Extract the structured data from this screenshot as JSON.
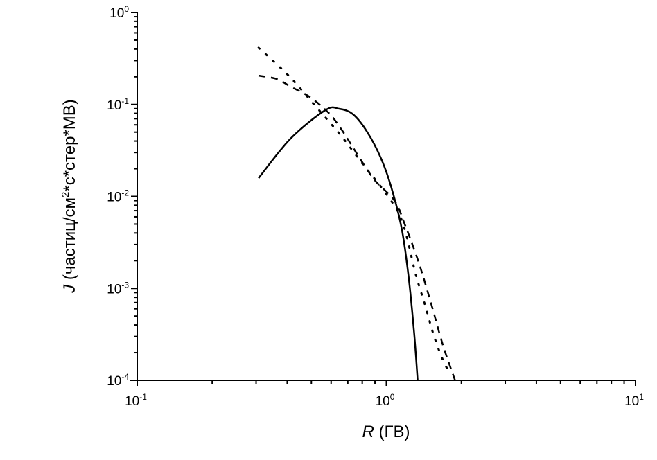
{
  "chart_data": {
    "type": "line",
    "title": "",
    "xlabel": {
      "symbol": "R",
      "text": " (ГВ)"
    },
    "ylabel": {
      "symbol": "J",
      "text_before_sup": " (частиц/см",
      "sup": "2",
      "text_after_sup": "*с*стер*МВ)"
    },
    "x_scale": "log",
    "y_scale": "log",
    "xlim": [
      0.1,
      10
    ],
    "ylim": [
      0.0001,
      1
    ],
    "grid": false,
    "legend": "none",
    "x_ticks": [
      {
        "value": 0.1,
        "base": "10",
        "exp": "-1"
      },
      {
        "value": 1,
        "base": "10",
        "exp": "0"
      },
      {
        "value": 10,
        "base": "10",
        "exp": "1"
      }
    ],
    "y_ticks": [
      {
        "value": 1,
        "base": "10",
        "exp": "0"
      },
      {
        "value": 0.1,
        "base": "10",
        "exp": "-1"
      },
      {
        "value": 0.01,
        "base": "10",
        "exp": "-2"
      },
      {
        "value": 0.001,
        "base": "10",
        "exp": "-3"
      },
      {
        "value": 0.0001,
        "base": "10",
        "exp": "-4"
      }
    ],
    "series": [
      {
        "style": "solid",
        "color": "#000000",
        "x": [
          0.307,
          0.413,
          0.569,
          0.646,
          0.735,
          0.836,
          0.95,
          1.046,
          1.152,
          1.228,
          1.292,
          1.335
        ],
        "y": [
          0.0158,
          0.0426,
          0.0867,
          0.0897,
          0.0781,
          0.0506,
          0.0262,
          0.01264,
          0.00447,
          0.00133,
          0.000331,
          0.0001
        ]
      },
      {
        "style": "dashed",
        "color": "#000000",
        "x": [
          0.307,
          0.363,
          0.413,
          0.494,
          0.587,
          0.655,
          0.726,
          0.82,
          0.908,
          1.08,
          1.189,
          1.352,
          1.517,
          1.692,
          1.887
        ],
        "y": [
          0.206,
          0.189,
          0.156,
          0.12,
          0.0809,
          0.0552,
          0.0358,
          0.0213,
          0.0145,
          0.00893,
          0.00487,
          0.00187,
          0.000662,
          0.000234,
          0.0001
        ]
      },
      {
        "style": "dotted",
        "color": "#000000",
        "x": [
          0.307,
          0.405,
          0.516,
          0.655,
          0.809,
          1.0,
          1.159,
          1.309,
          1.423,
          1.537,
          1.66,
          1.781
        ],
        "y": [
          0.413,
          0.206,
          0.0979,
          0.0464,
          0.022,
          0.0106,
          0.00531,
          0.00145,
          0.000686,
          0.000331,
          0.000184,
          0.000123
        ]
      }
    ]
  }
}
